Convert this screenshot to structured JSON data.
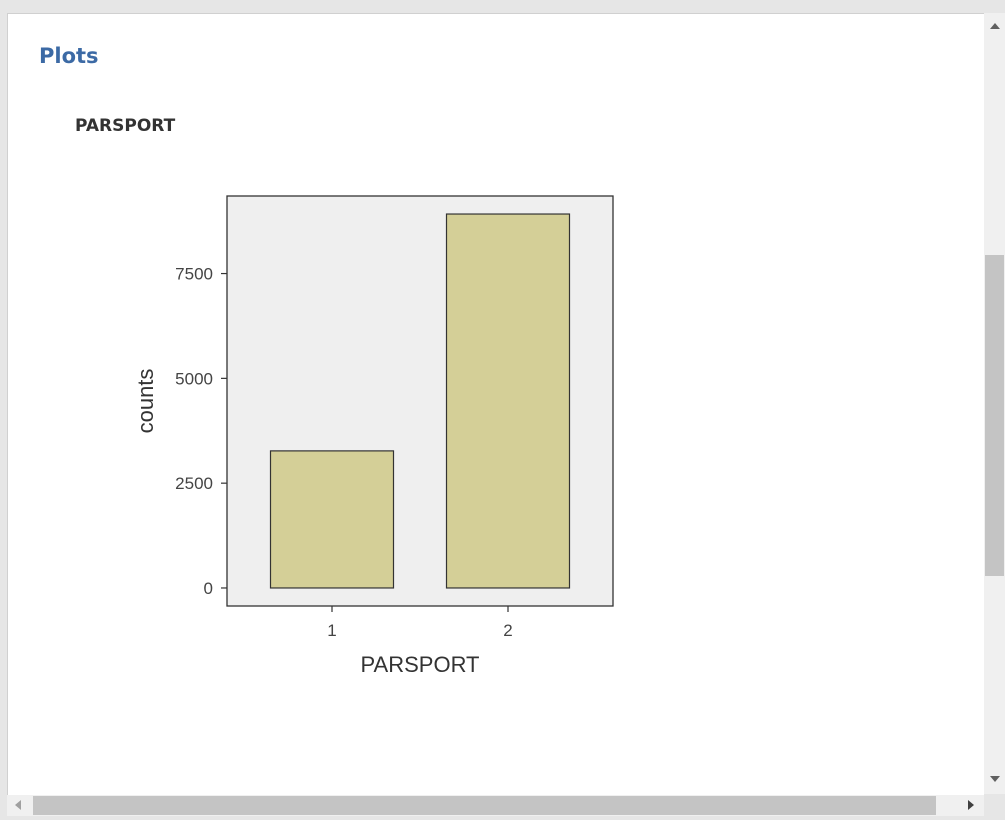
{
  "section": {
    "title": "Plots"
  },
  "plot": {
    "title": "PARSPORT"
  },
  "chart_data": {
    "type": "bar",
    "categories": [
      "1",
      "2"
    ],
    "values": [
      3270,
      8920
    ],
    "xlabel": "PARSPORT",
    "ylabel": "counts",
    "yticks": [
      0,
      2500,
      5000,
      7500
    ],
    "ylim": [
      -430,
      9350
    ],
    "grid": false,
    "colors": {
      "bar_fill": "#d4cf97",
      "bar_stroke": "#333333",
      "panel_bg": "#efefef"
    }
  },
  "scrollbars": {
    "vertical": true,
    "horizontal": true
  }
}
